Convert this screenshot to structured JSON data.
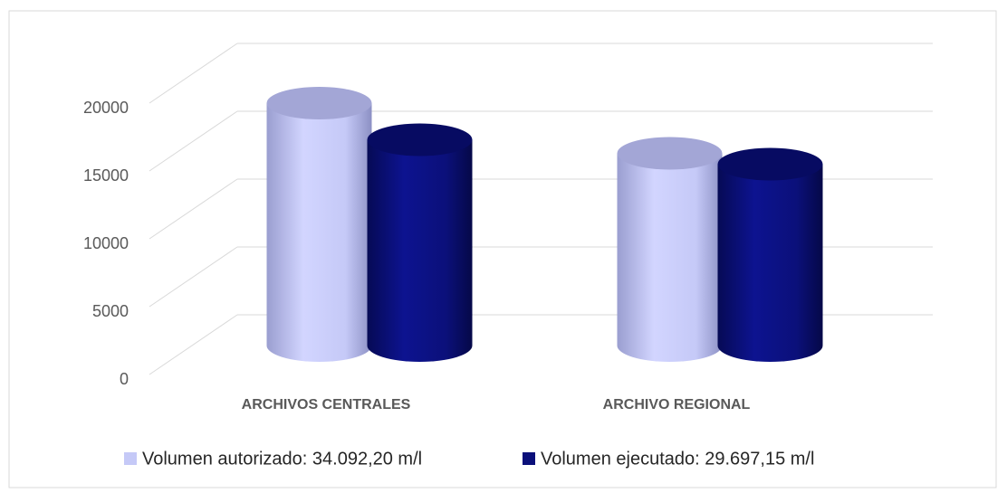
{
  "chart_data": {
    "type": "cylinder-bar",
    "categories": [
      "ARCHIVOS CENTRALES",
      "ARCHIVO REGIONAL"
    ],
    "series": [
      {
        "name": "Volumen autorizado: 34.092,20 m/l",
        "color": "#c5c9f7",
        "values": [
          18000,
          14300
        ]
      },
      {
        "name": "Volumen ejecutado: 29.697,15 m/l",
        "color": "#0b107a",
        "values": [
          15300,
          13500
        ]
      }
    ],
    "ylim": [
      0,
      20000
    ],
    "yticks": [
      0,
      5000,
      10000,
      15000,
      20000
    ],
    "grid": true,
    "legend": "bottom"
  }
}
